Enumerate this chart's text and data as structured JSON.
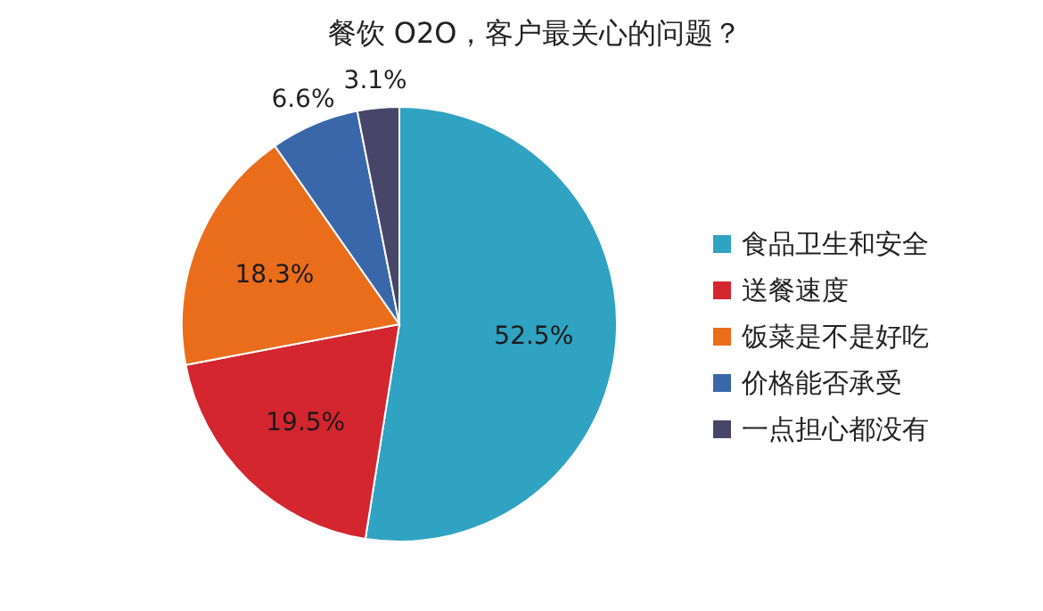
{
  "chart_data": {
    "type": "pie",
    "title": "餐饮 O2O，客户最关心的问题？",
    "categories": [
      "食品卫生和安全",
      "送餐速度",
      "饭菜是不是好吃",
      "价格能否承受",
      "一点担心都没有"
    ],
    "values": [
      52.5,
      19.5,
      18.3,
      6.6,
      3.1
    ],
    "colors": [
      "#2fa3c1",
      "#d3262f",
      "#ea6d1c",
      "#3a67aa",
      "#474669"
    ],
    "value_labels": [
      "52.5%",
      "19.5%",
      "18.3%",
      "6.6%",
      "3.1%"
    ],
    "legend": "right"
  }
}
